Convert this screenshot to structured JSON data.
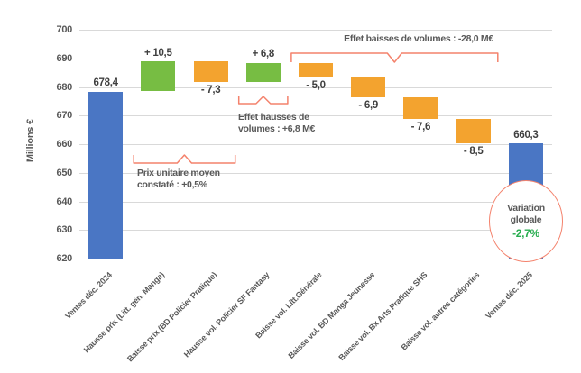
{
  "chart_data": {
    "type": "waterfall",
    "title": "",
    "ylabel": "Millions €",
    "ylim": [
      620,
      700
    ],
    "ytick_step": 10,
    "grid": true,
    "legend": false,
    "colors": {
      "total": "#4a76c4",
      "increase": "#77bd43",
      "decrease": "#f3a32f",
      "gridline": "#d9d9d9",
      "annotation": "#f4826c",
      "axis_text": "#595959",
      "value_text": "#3f3f3f",
      "variation_green": "#28ad4f"
    },
    "bars": [
      {
        "category": "Ventes déc. 2024",
        "kind": "total",
        "value": 678.4,
        "label": "678,4"
      },
      {
        "category": "Hausse prix (Litt. gén. Manga)",
        "kind": "increase",
        "value": 10.5,
        "label": "+ 10,5"
      },
      {
        "category": "Baisse prix (BD Policier Pratique)",
        "kind": "decrease",
        "value": -7.3,
        "label": "- 7,3"
      },
      {
        "category": "Hausse vol. Policier SF Fantasy",
        "kind": "increase",
        "value": 6.8,
        "label": "+ 6,8"
      },
      {
        "category": "Baisse vol. Litt.Générale",
        "kind": "decrease",
        "value": -5.0,
        "label": "- 5,0"
      },
      {
        "category": "Baisse vol. BD Manga Jeunesse",
        "kind": "decrease",
        "value": -6.9,
        "label": "- 6,9"
      },
      {
        "category": "Baisse vol. Bx Arts Pratique SHS",
        "kind": "decrease",
        "value": -7.6,
        "label": "- 7,6"
      },
      {
        "category": "Baisse vol. autres catégories",
        "kind": "decrease",
        "value": -8.5,
        "label": "- 8,5"
      },
      {
        "category": "Ventes déc. 2025",
        "kind": "total",
        "value": 660.3,
        "label": "660,3"
      }
    ],
    "annotations": {
      "price_note": {
        "line1": "Prix unitaire moyen",
        "line2": "constaté : +0,5%",
        "span": [
          1,
          2
        ],
        "side": "below"
      },
      "volume_up_note": {
        "line1": "Effet hausses de",
        "line2": "volumes : +6,8 M€",
        "span": [
          3,
          3
        ],
        "side": "below"
      },
      "volume_down_note": {
        "text": "Effet baisses de volumes : -28,0 M€",
        "span": [
          4,
          7
        ],
        "side": "above"
      },
      "variation": {
        "line1": "Variation",
        "line2": "globale",
        "value": "-2,7%",
        "bar": 8
      }
    }
  }
}
